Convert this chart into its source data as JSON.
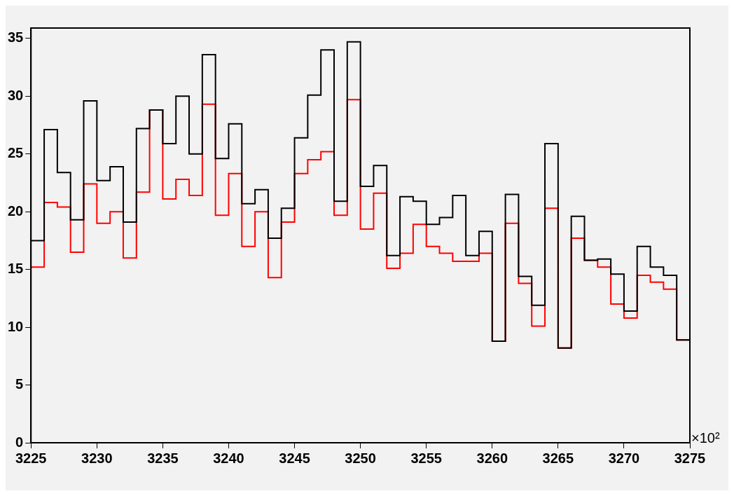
{
  "chart_data": {
    "type": "histogram",
    "bins": [
      3225,
      3226,
      3227,
      3228,
      3229,
      3230,
      3231,
      3232,
      3233,
      3234,
      3235,
      3236,
      3237,
      3238,
      3239,
      3240,
      3241,
      3242,
      3243,
      3244,
      3245,
      3246,
      3247,
      3248,
      3249,
      3250,
      3251,
      3252,
      3253,
      3254,
      3255,
      3256,
      3257,
      3258,
      3259,
      3260,
      3261,
      3262,
      3263,
      3264,
      3265,
      3266,
      3267,
      3268,
      3269,
      3270,
      3271,
      3272,
      3273,
      3274,
      3275
    ],
    "series": [
      {
        "color": "#000000",
        "values": [
          17.5,
          27.1,
          23.4,
          19.3,
          29.6,
          22.7,
          23.9,
          19.1,
          27.2,
          28.8,
          25.9,
          30.0,
          25.0,
          33.6,
          24.6,
          27.6,
          20.7,
          21.9,
          17.7,
          20.3,
          26.4,
          30.1,
          34.0,
          20.9,
          34.7,
          22.2,
          24.0,
          16.2,
          21.3,
          20.9,
          18.9,
          19.5,
          21.4,
          16.2,
          18.3,
          8.8,
          21.5,
          14.4,
          11.9,
          25.9,
          8.2,
          19.6,
          15.8,
          15.9,
          14.6,
          11.4,
          17.0,
          15.2,
          14.5,
          8.9
        ]
      },
      {
        "color": "#ff0000",
        "values": [
          15.2,
          20.8,
          20.4,
          16.5,
          22.4,
          19.0,
          20.0,
          16.0,
          21.7,
          28.8,
          21.1,
          22.8,
          21.4,
          29.3,
          19.7,
          23.3,
          17.0,
          20.0,
          14.3,
          19.1,
          23.3,
          24.5,
          25.2,
          19.7,
          29.7,
          18.5,
          21.6,
          15.1,
          16.4,
          18.9,
          17.0,
          16.4,
          15.7,
          15.7,
          16.4,
          8.8,
          19.0,
          13.8,
          10.1,
          20.3,
          8.2,
          17.7,
          15.8,
          15.2,
          12.0,
          10.8,
          14.5,
          13.9,
          13.3,
          8.9
        ]
      }
    ],
    "xlim": [
      3225,
      3275
    ],
    "xticks": [
      3225,
      3230,
      3235,
      3240,
      3245,
      3250,
      3255,
      3260,
      3265,
      3270,
      3275
    ],
    "ylim": [
      0,
      35.9
    ],
    "yticks": [
      0,
      5,
      10,
      15,
      20,
      25,
      30,
      35
    ],
    "annotations": [
      "×10²"
    ],
    "grid": false,
    "legend": false
  }
}
